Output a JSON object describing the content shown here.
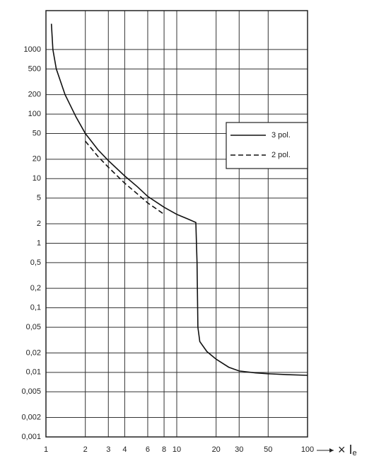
{
  "chart_data": {
    "type": "line",
    "xscale": "log",
    "yscale": "log",
    "grid": true,
    "xlim": [
      1,
      100
    ],
    "ylim": [
      0.001,
      4000
    ],
    "xticks": [
      1,
      2,
      3,
      4,
      6,
      8,
      10,
      20,
      30,
      50,
      100
    ],
    "yticks": [
      {
        "value": 0.001,
        "label": "0,001"
      },
      {
        "value": 0.002,
        "label": "0,002"
      },
      {
        "value": 0.005,
        "label": "0,005"
      },
      {
        "value": 0.01,
        "label": "0,01"
      },
      {
        "value": 0.02,
        "label": "0,02"
      },
      {
        "value": 0.05,
        "label": "0,05"
      },
      {
        "value": 0.1,
        "label": "0,1"
      },
      {
        "value": 0.2,
        "label": "0,2"
      },
      {
        "value": 0.5,
        "label": "0,5"
      },
      1,
      2,
      5,
      10,
      20,
      50,
      100,
      200,
      500,
      1000
    ],
    "x_label": {
      "text": "× I",
      "subscript": "e"
    },
    "legend": "upper right",
    "series": [
      {
        "name": "3 pol.",
        "color": "#111",
        "dash": "solid",
        "x": [
          1.1,
          1.13,
          1.2,
          1.4,
          1.7,
          2,
          2.5,
          3,
          4,
          5,
          6,
          8,
          10,
          12,
          14,
          14.3,
          14.5,
          15,
          17,
          20,
          25,
          30,
          40,
          50,
          70,
          100
        ],
        "values": [
          2500,
          1000,
          500,
          200,
          90,
          50,
          28,
          19,
          11,
          7.5,
          5.3,
          3.6,
          2.8,
          2.4,
          2.1,
          0.5,
          0.05,
          0.03,
          0.021,
          0.016,
          0.012,
          0.0105,
          0.0098,
          0.0095,
          0.0092,
          0.009
        ]
      },
      {
        "name": "2 pol.",
        "color": "#111",
        "dash": "dashed",
        "x": [
          2,
          2.5,
          3,
          4,
          5,
          6,
          7,
          8
        ],
        "values": [
          38,
          22,
          15,
          8.5,
          5.8,
          4.2,
          3.4,
          2.8
        ]
      }
    ]
  }
}
